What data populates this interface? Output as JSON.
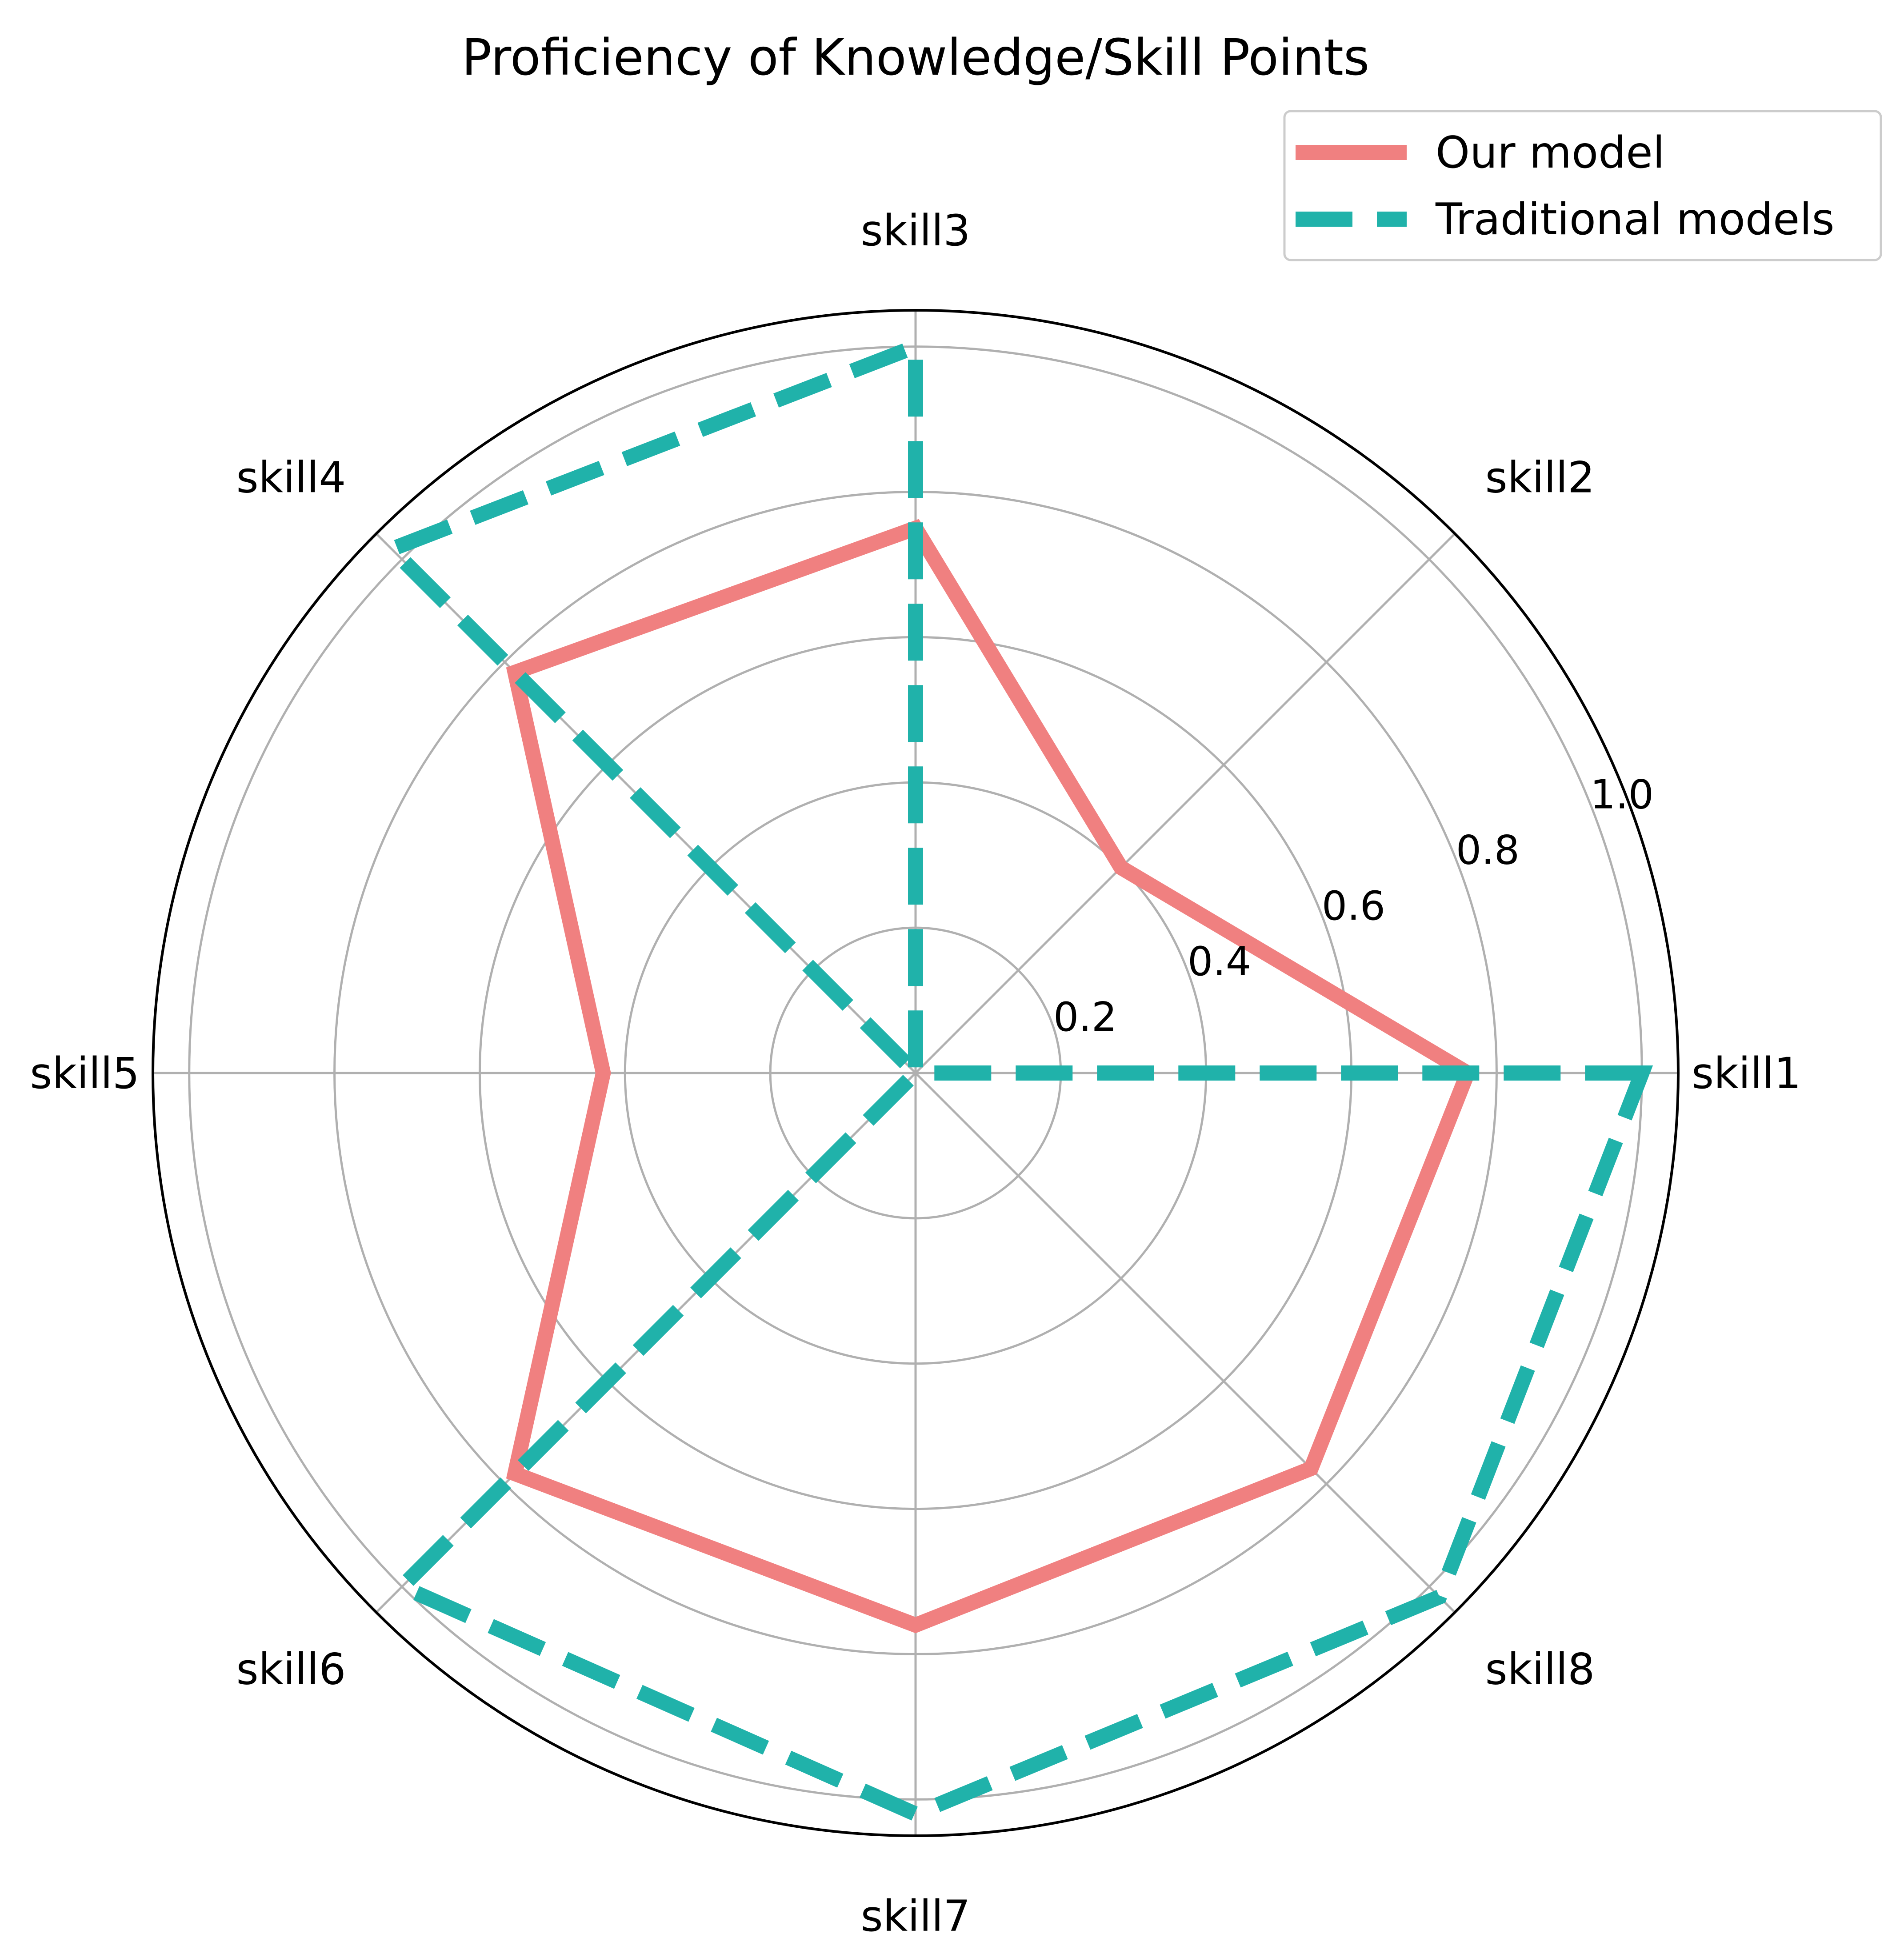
{
  "chart_data": {
    "type": "radar",
    "title": "Proficiency of Knowledge/Skill Points",
    "categories": [
      "skill1",
      "skill2",
      "skill3",
      "skill4",
      "skill5",
      "skill6",
      "skill7",
      "skill8"
    ],
    "rlim": [
      0,
      1.05
    ],
    "rticks": [
      0.2,
      0.4,
      0.6,
      0.8,
      1.0
    ],
    "rtick_labels": [
      "0.2",
      "0.4",
      "0.6",
      "0.8",
      "1.0"
    ],
    "grid": true,
    "legend_position": "top-right",
    "series": [
      {
        "name": "Our model",
        "values": [
          0.76,
          0.4,
          0.75,
          0.78,
          0.43,
          0.78,
          0.76,
          0.77
        ],
        "color": "#F08080",
        "style": "solid"
      },
      {
        "name": "Traditional models",
        "values": [
          1.0,
          0.0,
          1.0,
          1.02,
          0.0,
          1.0,
          1.02,
          1.02
        ],
        "color": "#20B2AA",
        "style": "dashed"
      }
    ]
  }
}
